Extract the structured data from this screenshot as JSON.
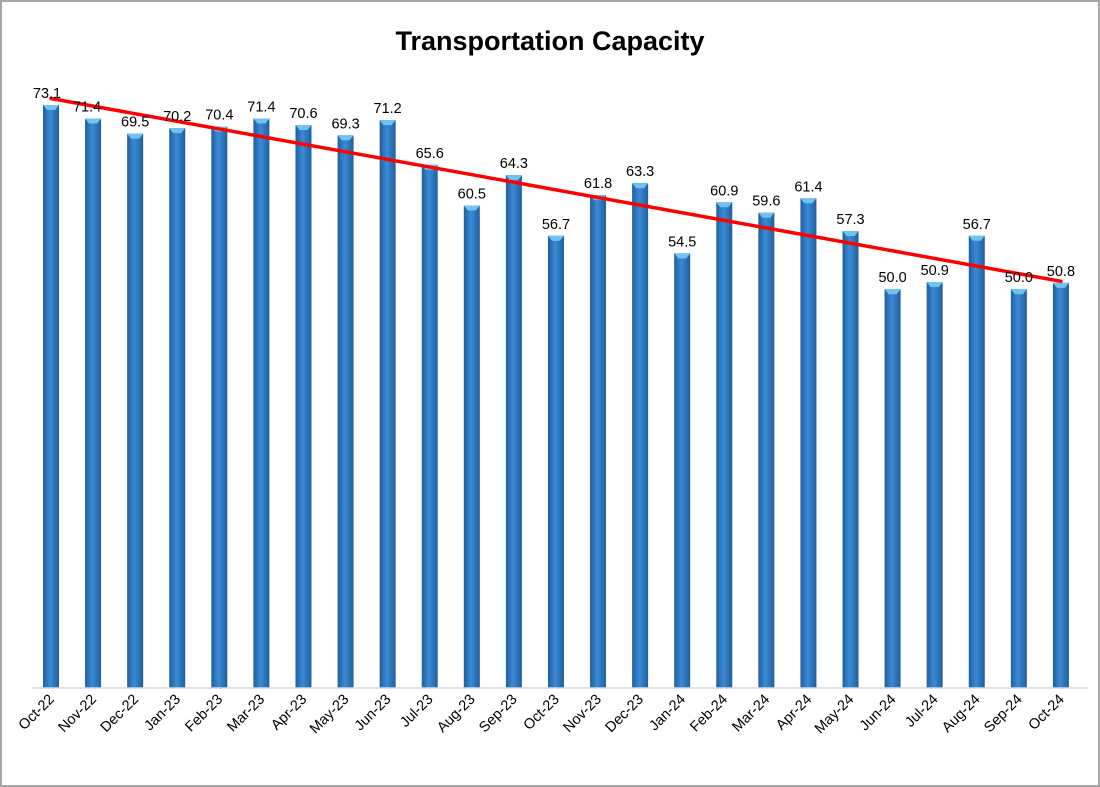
{
  "chart_data": {
    "type": "bar",
    "title": "Transportation Capacity",
    "categories": [
      "Oct-22",
      "Nov-22",
      "Dec-22",
      "Jan-23",
      "Feb-23",
      "Mar-23",
      "Apr-23",
      "May-23",
      "Jun-23",
      "Jul-23",
      "Aug-23",
      "Sep-23",
      "Oct-23",
      "Nov-23",
      "Dec-23",
      "Jan-24",
      "Feb-24",
      "Mar-24",
      "Apr-24",
      "May-24",
      "Jun-24",
      "Jul-24",
      "Aug-24",
      "Sep-24",
      "Oct-24"
    ],
    "value_labels": [
      "73.1",
      "71.4",
      "69.5",
      "70.2",
      "70.4",
      "71.4",
      "70.6",
      "69.3",
      "71.2",
      "65.6",
      "60.5",
      "64.3",
      "56.7",
      "61.8",
      "63.3",
      "54.5",
      "60.9",
      "59.6",
      "61.4",
      "57.3",
      "50.0",
      "50.9",
      "56.7",
      "50.0",
      "50.8"
    ],
    "series": [
      {
        "values": [
          73.1,
          71.4,
          69.5,
          70.2,
          70.4,
          71.4,
          70.6,
          69.3,
          71.2,
          65.6,
          60.5,
          64.3,
          56.7,
          61.8,
          63.3,
          54.5,
          60.9,
          59.6,
          61.4,
          57.3,
          50.0,
          50.9,
          56.7,
          50.0,
          50.8
        ]
      }
    ],
    "trendline": {
      "type": "linear",
      "color": "#ff0000"
    },
    "xlabel": "",
    "ylabel": "",
    "ylim": [
      0,
      73.1
    ],
    "grid": false,
    "legend": "none",
    "colors": {
      "bar": "#2e75b6",
      "bar_top": "#6fc3f0",
      "trend": "#ff0000",
      "border": "#a6a6a6",
      "axis": "#d9d9d9"
    }
  }
}
